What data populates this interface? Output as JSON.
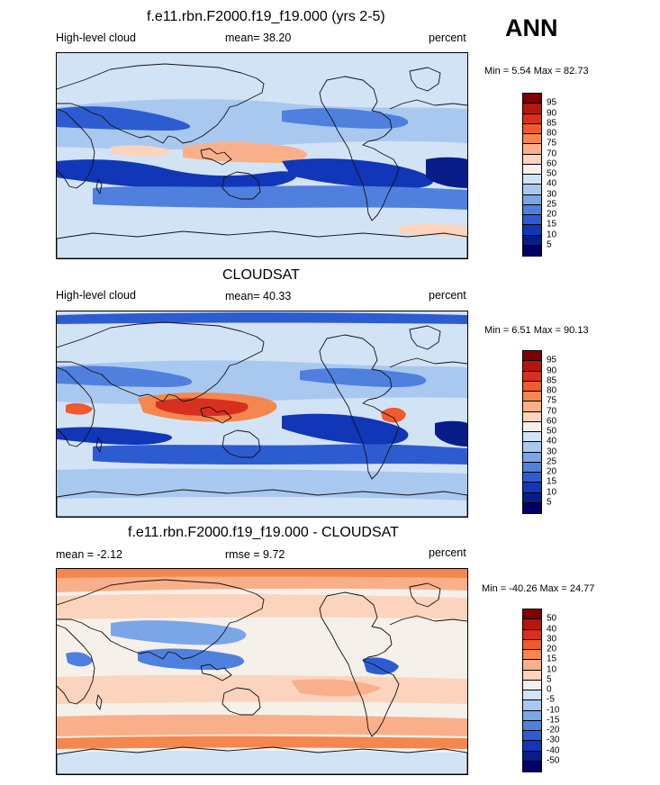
{
  "season": "ANN",
  "panels": [
    {
      "title": "f.e11.rbn.F2000.f19_f19.000 (yrs 2-5)",
      "left_label": "High-level cloud",
      "mean_text": "mean=  38.20",
      "units": "percent",
      "minmax": "Min =   5.54 Max =  82.73",
      "colorbar_labels": [
        "95",
        "90",
        "85",
        "80",
        "75",
        "70",
        "60",
        "50",
        "40",
        "30",
        "25",
        "20",
        "15",
        "10",
        "5"
      ]
    },
    {
      "title": "CLOUDSAT",
      "left_label": "High-level cloud",
      "mean_text": "mean=  40.33",
      "units": "percent",
      "minmax": "Min =   6.51 Max =  90.13",
      "colorbar_labels": [
        "95",
        "90",
        "85",
        "80",
        "75",
        "70",
        "60",
        "50",
        "40",
        "30",
        "25",
        "20",
        "15",
        "10",
        "5"
      ]
    },
    {
      "title": "f.e11.rbn.F2000.f19_f19.000 - CLOUDSAT",
      "left_label": "mean =  -2.12",
      "mean_text": "rmse =   9.72",
      "units": "percent",
      "minmax": "Min = -40.26 Max =  24.77",
      "colorbar_labels": [
        "50",
        "40",
        "30",
        "20",
        "15",
        "10",
        "5",
        "0",
        "-5",
        "-10",
        "-15",
        "-20",
        "-30",
        "-40",
        "-50"
      ]
    }
  ],
  "colors": {
    "scale": [
      "#7f0000",
      "#b2180e",
      "#d7301f",
      "#ef5a2f",
      "#f4874f",
      "#f9b08a",
      "#fcd4bd",
      "#f5f0ea",
      "#d3e3f6",
      "#a9c8f0",
      "#7aa6e8",
      "#4f80dd",
      "#2d5cd1",
      "#1236b8",
      "#081d8a",
      "#000066"
    ]
  },
  "icons": {
    "continents": "coastline-icon"
  }
}
